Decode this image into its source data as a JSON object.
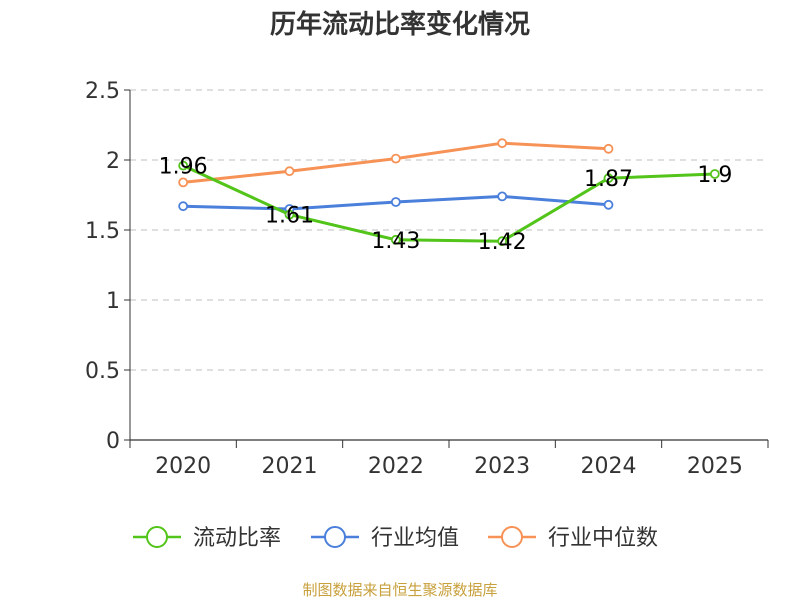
{
  "chart_data": {
    "type": "line",
    "title": "历年流动比率变化情况",
    "categories": [
      "2020",
      "2021",
      "2022",
      "2023",
      "2024",
      "2025"
    ],
    "ylim": [
      0,
      2.5
    ],
    "yticks": [
      "0",
      "0.5",
      "1",
      "1.5",
      "2",
      "2.5"
    ],
    "grid": true,
    "legend_position": "bottom",
    "series": [
      {
        "name": "流动比率",
        "color": "#52c41a",
        "values": [
          1.96,
          1.61,
          1.43,
          1.42,
          1.87,
          1.9
        ],
        "labels": [
          "1.96",
          "1.61",
          "1.43",
          "1.42",
          "1.87",
          "1.9"
        ]
      },
      {
        "name": "行业均值",
        "color": "#4a7fdb",
        "values": [
          1.67,
          1.65,
          1.7,
          1.74,
          1.68,
          null
        ]
      },
      {
        "name": "行业中位数",
        "color": "#f79256",
        "values": [
          1.84,
          1.92,
          2.01,
          2.12,
          2.08,
          null
        ]
      }
    ],
    "source": "制图数据来自恒生聚源数据库"
  }
}
